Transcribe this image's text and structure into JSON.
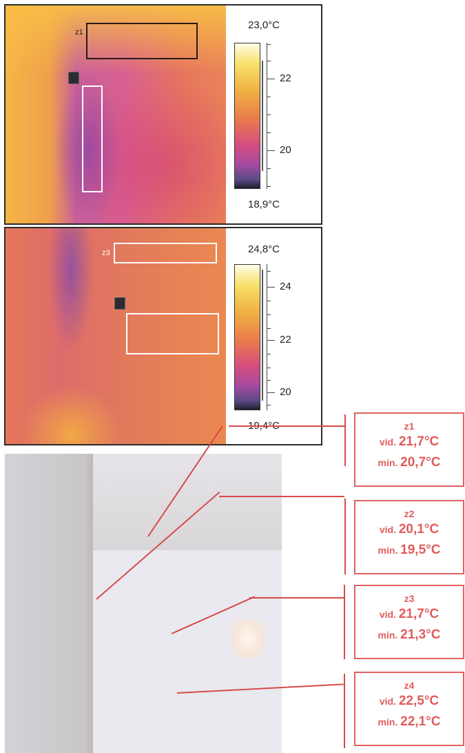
{
  "thermogram_1": {
    "zone_label": "z1",
    "scale_max": "23,0°C",
    "scale_min": "18,9°C",
    "ticks": [
      "22",
      "20"
    ]
  },
  "thermogram_2": {
    "zone_label": "z3",
    "scale_max": "24,8°C",
    "scale_min": "19,4°C",
    "ticks": [
      "24",
      "22",
      "20"
    ]
  },
  "zones": [
    {
      "name": "z1",
      "avg_label": "vid.",
      "avg": "21,7°C",
      "min_label": "min.",
      "min": "20,7°C"
    },
    {
      "name": "z2",
      "avg_label": "vid.",
      "avg": "20,1°C",
      "min_label": "min.",
      "min": "19,5°C"
    },
    {
      "name": "z3",
      "avg_label": "vid.",
      "avg": "21,7°C",
      "min_label": "min.",
      "min": "21,3°C"
    },
    {
      "name": "z4",
      "avg_label": "vid.",
      "avg": "22,5°C",
      "min_label": "min.",
      "min": "22,1°C"
    }
  ],
  "colors": {
    "accent": "#e05b5b",
    "frame": "#2a2a2a"
  }
}
